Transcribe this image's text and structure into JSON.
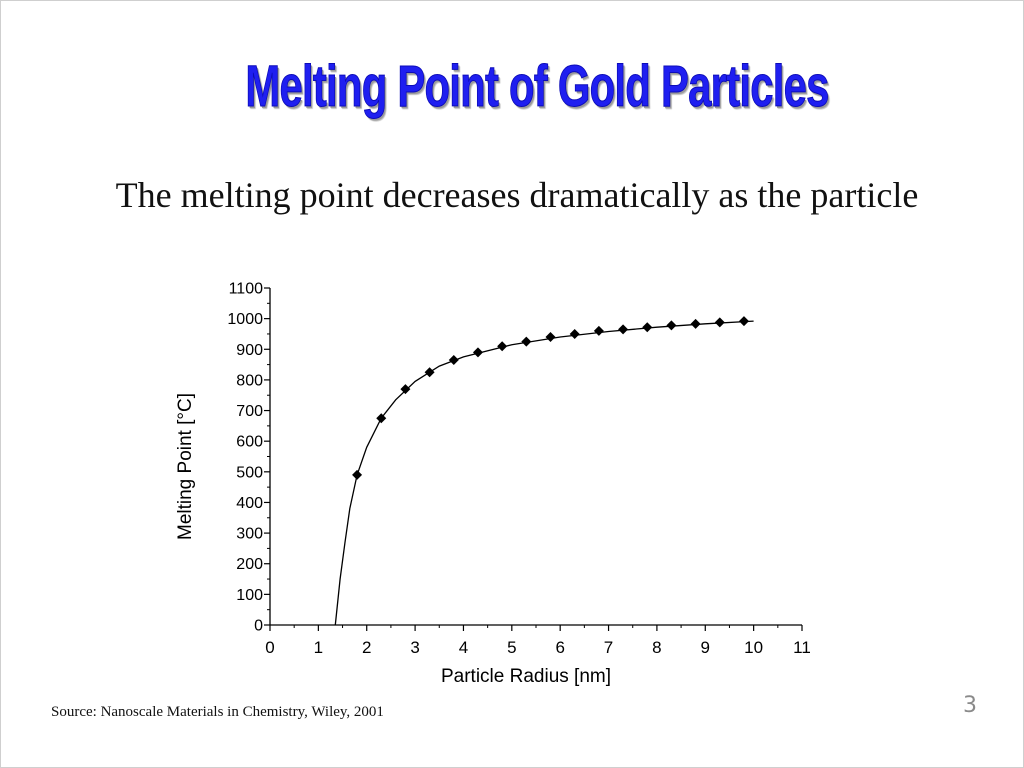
{
  "slide": {
    "title": "Melting Point of Gold Particles",
    "subtitle": "The melting point decreases dramatically as the particle",
    "source": "Source: Nanoscale Materials in Chemistry, Wiley, 2001",
    "page_number": "3",
    "title_color": "#1f1ff0"
  },
  "chart_data": {
    "type": "scatter",
    "title": "",
    "xlabel": "Particle Radius [nm]",
    "ylabel": "Melting Point [°C]",
    "xlim": [
      0,
      11
    ],
    "ylim": [
      0,
      1100
    ],
    "xticks": [
      "0",
      "1",
      "2",
      "3",
      "4",
      "5",
      "6",
      "7",
      "8",
      "9",
      "10",
      "11"
    ],
    "yticks": [
      "0",
      "100",
      "200",
      "300",
      "400",
      "500",
      "600",
      "700",
      "800",
      "900",
      "1000",
      "1100"
    ],
    "grid": false,
    "legend": "none",
    "series": [
      {
        "x": [
          1.8,
          2.3,
          2.8,
          3.3,
          3.8,
          4.3,
          4.8,
          5.3,
          5.8,
          6.3,
          6.8,
          7.3,
          7.8,
          8.3,
          8.8,
          9.3,
          9.8
        ],
        "y": [
          490,
          675,
          770,
          825,
          865,
          890,
          910,
          925,
          940,
          950,
          960,
          965,
          972,
          978,
          983,
          988,
          992
        ],
        "marker": "diamond",
        "color": "#000000"
      }
    ],
    "fit_curve": {
      "description_visible": false,
      "x": [
        1.35,
        1.45,
        1.55,
        1.65,
        1.8,
        2.0,
        2.3,
        2.6,
        3.0,
        3.5,
        4.0,
        5.0,
        6.0,
        7.0,
        8.0,
        9.0,
        10.0
      ],
      "y": [
        0,
        150,
        270,
        380,
        490,
        580,
        675,
        735,
        795,
        845,
        875,
        915,
        940,
        958,
        972,
        983,
        992
      ]
    }
  }
}
